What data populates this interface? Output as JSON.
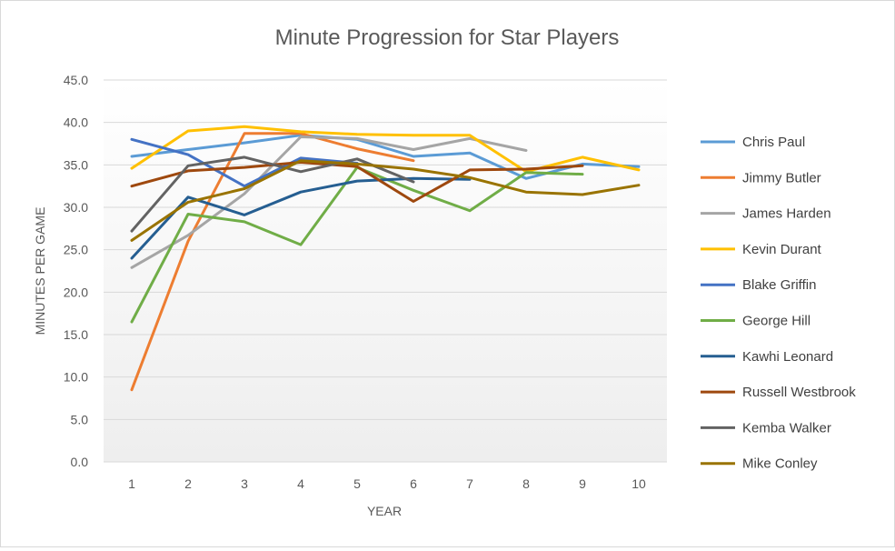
{
  "chart_data": {
    "type": "line",
    "title": "Minute Progression for Star Players",
    "xlabel": "YEAR",
    "ylabel": "MINUTES PER GAME",
    "ylim": [
      0,
      45
    ],
    "y_ticks": [
      "0.0",
      "5.0",
      "10.0",
      "15.0",
      "20.0",
      "25.0",
      "30.0",
      "35.0",
      "40.0",
      "45.0"
    ],
    "categories": [
      "1",
      "2",
      "3",
      "4",
      "5",
      "6",
      "7",
      "8",
      "9",
      "10"
    ],
    "grid": true,
    "legend_position": "right",
    "series": [
      {
        "name": "Chris Paul",
        "color": "#5b9bd5",
        "values": [
          36.0,
          36.8,
          37.6,
          38.5,
          38.0,
          36.0,
          36.4,
          33.4,
          35.1,
          34.8
        ]
      },
      {
        "name": "Jimmy Butler",
        "color": "#ed7d31",
        "values": [
          8.5,
          26.0,
          38.7,
          38.7,
          36.9,
          35.5,
          null,
          null,
          null,
          null
        ]
      },
      {
        "name": "James Harden",
        "color": "#a5a5a5",
        "values": [
          22.9,
          26.7,
          31.6,
          38.3,
          38.1,
          36.8,
          38.1,
          36.7,
          null,
          null
        ]
      },
      {
        "name": "Kevin Durant",
        "color": "#ffc000",
        "values": [
          34.6,
          39.0,
          39.5,
          38.9,
          38.6,
          38.5,
          38.5,
          34.2,
          35.9,
          34.4
        ]
      },
      {
        "name": "Blake Griffin",
        "color": "#4472c4",
        "values": [
          38.0,
          36.2,
          32.5,
          35.8,
          35.2,
          null,
          null,
          null,
          null,
          null
        ]
      },
      {
        "name": "George Hill",
        "color": "#70ad47",
        "values": [
          16.5,
          29.2,
          28.3,
          25.6,
          34.7,
          32.0,
          29.6,
          34.1,
          33.9,
          null
        ]
      },
      {
        "name": "Kawhi Leonard",
        "color": "#255e91",
        "values": [
          24.0,
          31.2,
          29.1,
          31.8,
          33.1,
          33.4,
          33.3,
          null,
          null,
          null
        ]
      },
      {
        "name": "Russell Westbrook",
        "color": "#9e480e",
        "values": [
          32.5,
          34.3,
          34.7,
          35.3,
          34.8,
          30.7,
          34.4,
          34.5,
          34.9,
          null
        ]
      },
      {
        "name": "Kemba Walker",
        "color": "#636363",
        "values": [
          27.2,
          34.9,
          35.9,
          34.2,
          35.7,
          33.0,
          null,
          null,
          null,
          null
        ]
      },
      {
        "name": "Mike Conley",
        "color": "#997300",
        "values": [
          26.1,
          30.6,
          32.2,
          35.5,
          35.1,
          34.5,
          33.5,
          31.8,
          31.5,
          32.6
        ]
      }
    ]
  }
}
